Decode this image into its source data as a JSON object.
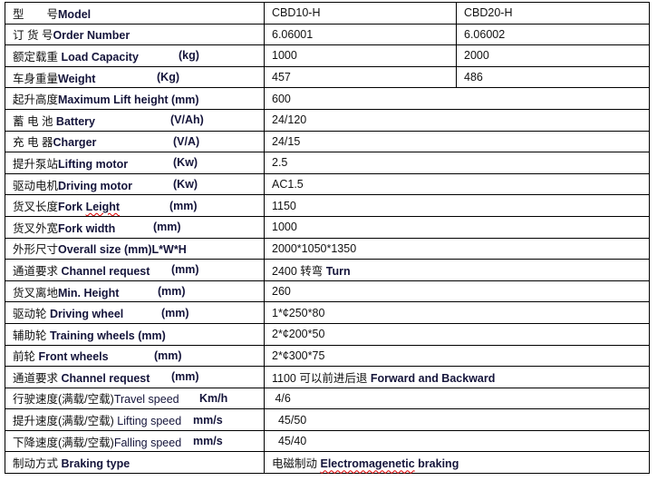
{
  "table": {
    "rows": [
      {
        "cn": "型　　号",
        "en": "Model",
        "en_bold": true,
        "unit": "",
        "values": [
          "CBD10-H",
          "CBD20-H"
        ]
      },
      {
        "cn": "订 货 号",
        "en": "Order Number",
        "en_bold": true,
        "unit": "",
        "values": [
          "6.06001",
          "6.06002"
        ]
      },
      {
        "cn": "额定载重 ",
        "en": "Load Capacity",
        "en_bold": true,
        "unit": "(kg)",
        "values": [
          "1000",
          "2000"
        ]
      },
      {
        "cn": "车身重量",
        "en": "Weight",
        "en_bold": true,
        "unit": "(Kg)",
        "values": [
          "457",
          "486"
        ]
      },
      {
        "cn": "起升高度",
        "en": "Maximum Lift height (mm)",
        "en_bold": true,
        "unit": "",
        "value": "600",
        "value_en": ""
      },
      {
        "cn": "蓄 电 池 ",
        "en": "Battery",
        "en_bold": true,
        "unit": "(V/Ah)",
        "value": "24/120",
        "value_en": ""
      },
      {
        "cn": "充  电  器",
        "en": "Charger",
        "en_bold": true,
        "unit": "(V/A)",
        "value": "24/15",
        "value_en": ""
      },
      {
        "cn": "提升泵站",
        "en": "Lifting motor",
        "en_bold": true,
        "unit": "(Kw)",
        "value": "2.5",
        "value_en": ""
      },
      {
        "cn": "驱动电机",
        "en": "Driving motor",
        "en_bold": true,
        "unit": "(Kw)",
        "value": "AC1.5",
        "value_en": ""
      },
      {
        "cn": "货叉长度",
        "en": "Fork Leight",
        "en_bold": true,
        "unit": "(mm)",
        "value": "1150",
        "value_en": ""
      },
      {
        "cn": "货叉外宽",
        "en": "Fork width",
        "en_bold": true,
        "unit": "(mm)",
        "value": "1000",
        "value_en": ""
      },
      {
        "cn": "外形尺寸",
        "en": "Overall size (mm)L*W*H",
        "en_bold": true,
        "unit": "",
        "value": "2000*1050*1350",
        "value_en": ""
      },
      {
        "cn": "通道要求 ",
        "en": "Channel request",
        "en_bold": true,
        "unit": "(mm)",
        "value": "2400 转弯 ",
        "value_en": "Turn"
      },
      {
        "cn": "货叉离地",
        "en": "Min. Height",
        "en_bold": true,
        "unit": "(mm)",
        "value": "260",
        "value_en": ""
      },
      {
        "cn": "驱动轮 ",
        "en": "Driving wheel",
        "en_bold": true,
        "unit": "(mm)",
        "value": "1*¢250*80",
        "value_en": ""
      },
      {
        "cn": "辅助轮 ",
        "en": "Training wheels (mm)",
        "en_bold": true,
        "unit": "",
        "value": "2*¢200*50",
        "value_en": ""
      },
      {
        "cn": "前轮 ",
        "en": "Front wheels",
        "en_bold": true,
        "unit": "(mm)",
        "value": "2*¢300*75",
        "value_en": ""
      },
      {
        "cn": "通道要求 ",
        "en": "Channel request",
        "en_bold": true,
        "unit": "(mm)",
        "value": "1100 可以前进后退 ",
        "value_en": "Forward and Backward"
      },
      {
        "cn": "行驶速度(满载/空载)",
        "en": "Travel speed",
        "en_bold": false,
        "unit": "Km/h",
        "value": " 4/6",
        "value_en": ""
      },
      {
        "cn": "提升速度(满载/空载) ",
        "en": "Lifting speed",
        "en_bold": false,
        "unit": "mm/s",
        "value": "  45/50",
        "value_en": ""
      },
      {
        "cn": "下降速度(满载/空载)",
        "en": "Falling speed",
        "en_bold": false,
        "unit": "mm/s",
        "value": "  45/40",
        "value_en": ""
      },
      {
        "cn": "制动方式 ",
        "en": "Braking type",
        "en_bold": true,
        "unit": "",
        "value": "电磁制动 ",
        "value_en": "Electromagenetic braking"
      }
    ]
  }
}
